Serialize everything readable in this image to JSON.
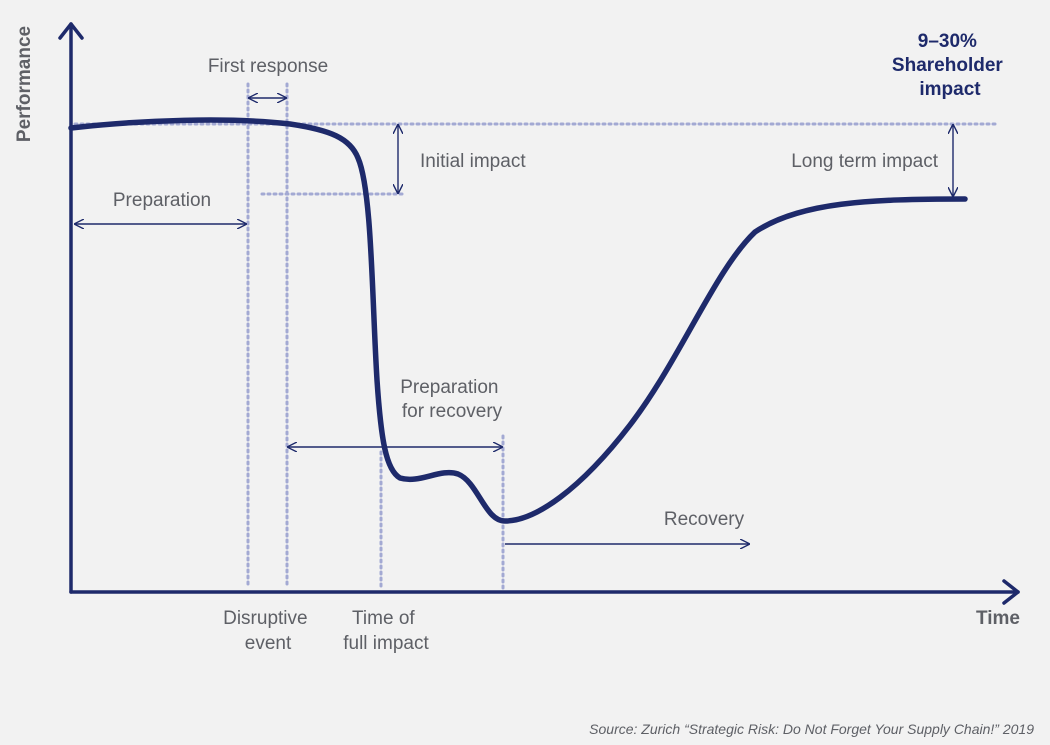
{
  "colors": {
    "background": "#f2f2f2",
    "accent": "#1e2a6b",
    "guide": "#a3a9d3",
    "text": "#5e6066"
  },
  "axes": {
    "y_label": "Performance",
    "x_label": "Time"
  },
  "annotations": {
    "first_response": "First response",
    "shareholder_impact": [
      "9–30%",
      "Shareholder",
      "impact"
    ],
    "initial_impact": "Initial impact",
    "long_term_impact": "Long term impact",
    "preparation": "Preparation",
    "preparation_for_recovery": [
      "Preparation",
      "for recovery"
    ],
    "recovery": "Recovery",
    "disruptive_event": [
      "Disruptive",
      "event"
    ],
    "time_of_full_impact": [
      "Time of",
      "full impact"
    ]
  },
  "source": "Source: Zurich “Strategic Risk: Do Not Forget Your Supply Chain!” 2019"
}
